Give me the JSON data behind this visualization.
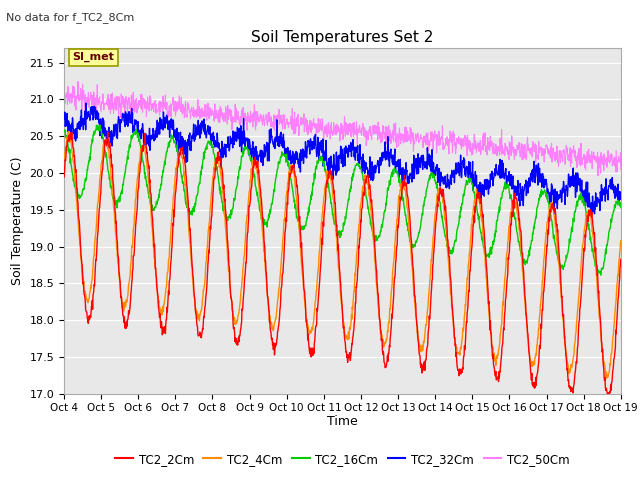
{
  "title": "Soil Temperatures Set 2",
  "subtitle": "No data for f_TC2_8Cm",
  "ylabel": "Soil Temperature (C)",
  "xlabel": "Time",
  "ylim": [
    17.0,
    21.7
  ],
  "yticks": [
    17.0,
    17.5,
    18.0,
    18.5,
    19.0,
    19.5,
    20.0,
    20.5,
    21.0,
    21.5
  ],
  "xtick_labels": [
    "Oct 4",
    "Oct 5",
    "Oct 6",
    "Oct 7",
    "Oct 8",
    "Oct 9",
    "Oct 10",
    "Oct 11",
    "Oct 12",
    "Oct 13",
    "Oct 14",
    "Oct 15",
    "Oct 16",
    "Oct 17",
    "Oct 18",
    "Oct 19"
  ],
  "colors": {
    "TC2_2Cm": "#ff0000",
    "TC2_4Cm": "#ff8c00",
    "TC2_16Cm": "#00cc00",
    "TC2_32Cm": "#0000ff",
    "TC2_50Cm": "#ff80ff"
  },
  "bg_color": "#e8e8e8",
  "annotation_text": "SI_met",
  "annotation_box_color": "#ffff99",
  "annotation_box_edge": "#999900"
}
